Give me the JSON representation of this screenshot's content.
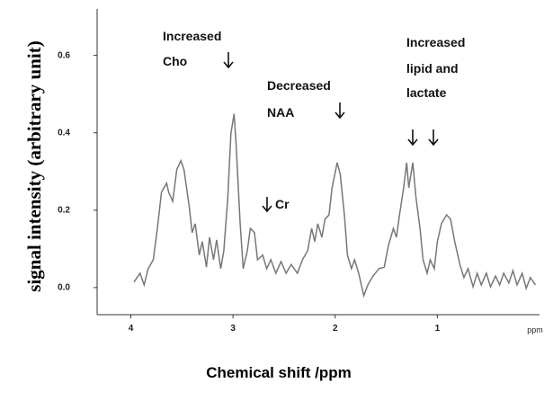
{
  "chart_data": {
    "type": "line",
    "xlabel": "Chemical shift /ppm",
    "ylabel": "signal intensity (arbitrary unit)",
    "x_unit_label": "ppm",
    "annotations": [
      "Increased",
      "Cho",
      "Decreased",
      "NAA",
      "Cr",
      "Increased",
      "lipid and",
      "lactate"
    ],
    "xlim": [
      4.33,
      0
    ],
    "xticks": [
      4,
      3,
      2,
      1
    ],
    "ylim": [
      -0.07,
      0.72
    ],
    "yticks": [
      {
        "value": 0,
        "label": "0.0"
      },
      0.2,
      0.4,
      0.6
    ],
    "grid": false,
    "series": [
      {
        "color": "#777777",
        "x": [
          3.97,
          3.91,
          3.87,
          3.83,
          3.78,
          3.74,
          3.7,
          3.65,
          3.63,
          3.59,
          3.55,
          3.51,
          3.48,
          3.43,
          3.4,
          3.37,
          3.33,
          3.3,
          3.26,
          3.23,
          3.19,
          3.16,
          3.12,
          3.09,
          3.05,
          3.02,
          2.99,
          2.97,
          2.93,
          2.9,
          2.86,
          2.83,
          2.79,
          2.76,
          2.71,
          2.67,
          2.63,
          2.58,
          2.53,
          2.48,
          2.43,
          2.37,
          2.32,
          2.27,
          2.23,
          2.2,
          2.17,
          2.13,
          2.1,
          2.06,
          2.03,
          1.98,
          1.95,
          1.91,
          1.88,
          1.84,
          1.81,
          1.77,
          1.72,
          1.68,
          1.63,
          1.57,
          1.52,
          1.48,
          1.43,
          1.4,
          1.37,
          1.33,
          1.3,
          1.28,
          1.24,
          1.21,
          1.17,
          1.14,
          1.1,
          1.07,
          1.03,
          1.0,
          0.96,
          0.91,
          0.87,
          0.83,
          0.78,
          0.74,
          0.7,
          0.65,
          0.61,
          0.57,
          0.52,
          0.48,
          0.43,
          0.39,
          0.35,
          0.3,
          0.26,
          0.22,
          0.17,
          0.13,
          0.09,
          0.04
        ],
        "values": [
          0.014,
          0.037,
          0.007,
          0.049,
          0.072,
          0.153,
          0.247,
          0.27,
          0.247,
          0.223,
          0.305,
          0.328,
          0.305,
          0.212,
          0.142,
          0.165,
          0.084,
          0.119,
          0.053,
          0.13,
          0.072,
          0.123,
          0.049,
          0.095,
          0.235,
          0.398,
          0.449,
          0.374,
          0.165,
          0.049,
          0.095,
          0.153,
          0.142,
          0.072,
          0.084,
          0.049,
          0.072,
          0.037,
          0.067,
          0.037,
          0.06,
          0.037,
          0.072,
          0.095,
          0.153,
          0.119,
          0.165,
          0.13,
          0.177,
          0.188,
          0.258,
          0.323,
          0.293,
          0.188,
          0.084,
          0.049,
          0.072,
          0.037,
          -0.021,
          0.007,
          0.03,
          0.049,
          0.053,
          0.107,
          0.153,
          0.13,
          0.188,
          0.258,
          0.323,
          0.258,
          0.323,
          0.235,
          0.153,
          0.072,
          0.037,
          0.072,
          0.049,
          0.119,
          0.165,
          0.188,
          0.177,
          0.119,
          0.06,
          0.026,
          0.049,
          0.002,
          0.037,
          0.007,
          0.037,
          0.002,
          0.03,
          0.007,
          0.037,
          0.012,
          0.044,
          0.007,
          0.037,
          -0.002,
          0.026,
          0.007
        ]
      }
    ]
  }
}
